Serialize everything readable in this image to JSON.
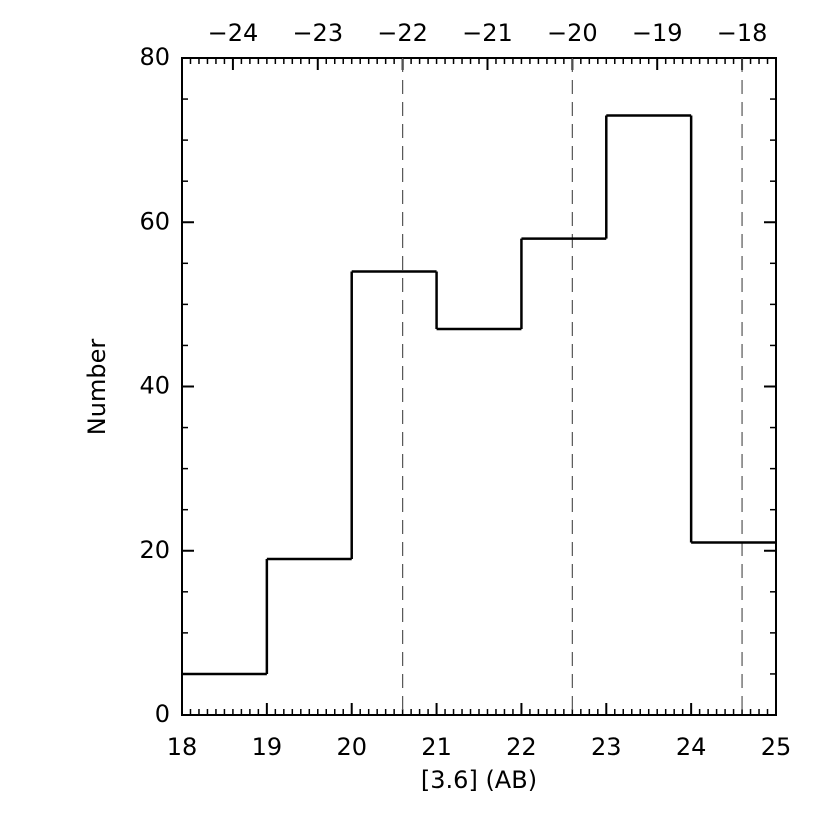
{
  "chart_data": {
    "type": "histogram",
    "xlabel": "[3.6] (AB)",
    "ylabel": "Number",
    "bins": [
      18,
      19,
      20,
      21,
      22,
      23,
      24,
      25
    ],
    "counts": [
      5,
      19,
      54,
      47,
      58,
      73,
      21
    ],
    "color": "#000000",
    "xlim": [
      18,
      25
    ],
    "xticks": [
      18,
      19,
      20,
      21,
      22,
      23,
      24,
      25
    ],
    "ylim": [
      0,
      80
    ],
    "yticks": [
      0,
      20,
      40,
      60,
      80
    ],
    "x2lim": [
      -24.6,
      -17.6
    ],
    "x2ticks": [
      {
        "value": -24,
        "label": "−24"
      },
      {
        "value": -23,
        "label": "−23"
      },
      {
        "value": -22,
        "label": "−22"
      },
      {
        "value": -21,
        "label": "−21"
      },
      {
        "value": -20,
        "label": "−20"
      },
      {
        "value": -19,
        "label": "−19"
      },
      {
        "value": -18,
        "label": "−18"
      }
    ],
    "vlines_x2": [
      -22,
      -20,
      -18
    ],
    "x_minor_per_major": 10,
    "y_minor_per_major": 4
  }
}
